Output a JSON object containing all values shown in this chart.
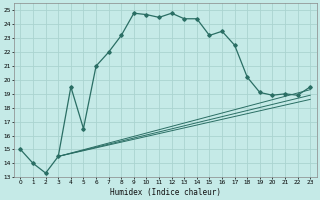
{
  "title": "",
  "xlabel": "Humidex (Indice chaleur)",
  "ylabel": "",
  "bg_color": "#c5eae7",
  "grid_color": "#aad4d0",
  "line_color": "#2a6e64",
  "xlim": [
    -0.5,
    23.5
  ],
  "ylim": [
    13,
    25.5
  ],
  "yticks": [
    13,
    14,
    15,
    16,
    17,
    18,
    19,
    20,
    21,
    22,
    23,
    24,
    25
  ],
  "xticks": [
    0,
    1,
    2,
    3,
    4,
    5,
    6,
    7,
    8,
    9,
    10,
    11,
    12,
    13,
    14,
    15,
    16,
    17,
    18,
    19,
    20,
    21,
    22,
    23
  ],
  "main_line_x": [
    0,
    1,
    2,
    3,
    4,
    5,
    6,
    7,
    8,
    9,
    10,
    11,
    12,
    13,
    14,
    15,
    16,
    17,
    18,
    19,
    20,
    21,
    22,
    23
  ],
  "main_line_y": [
    15.0,
    14.0,
    13.3,
    14.5,
    19.5,
    16.5,
    21.0,
    22.0,
    23.2,
    24.8,
    24.7,
    24.5,
    24.8,
    24.4,
    24.4,
    23.2,
    23.5,
    22.5,
    20.2,
    19.1,
    18.9,
    19.0,
    18.9,
    19.5
  ],
  "line2_x": [
    3,
    23
  ],
  "line2_y": [
    14.5,
    19.3
  ],
  "line3_x": [
    3,
    23
  ],
  "line3_y": [
    14.5,
    18.9
  ],
  "line4_x": [
    3,
    23
  ],
  "line4_y": [
    14.5,
    18.6
  ]
}
